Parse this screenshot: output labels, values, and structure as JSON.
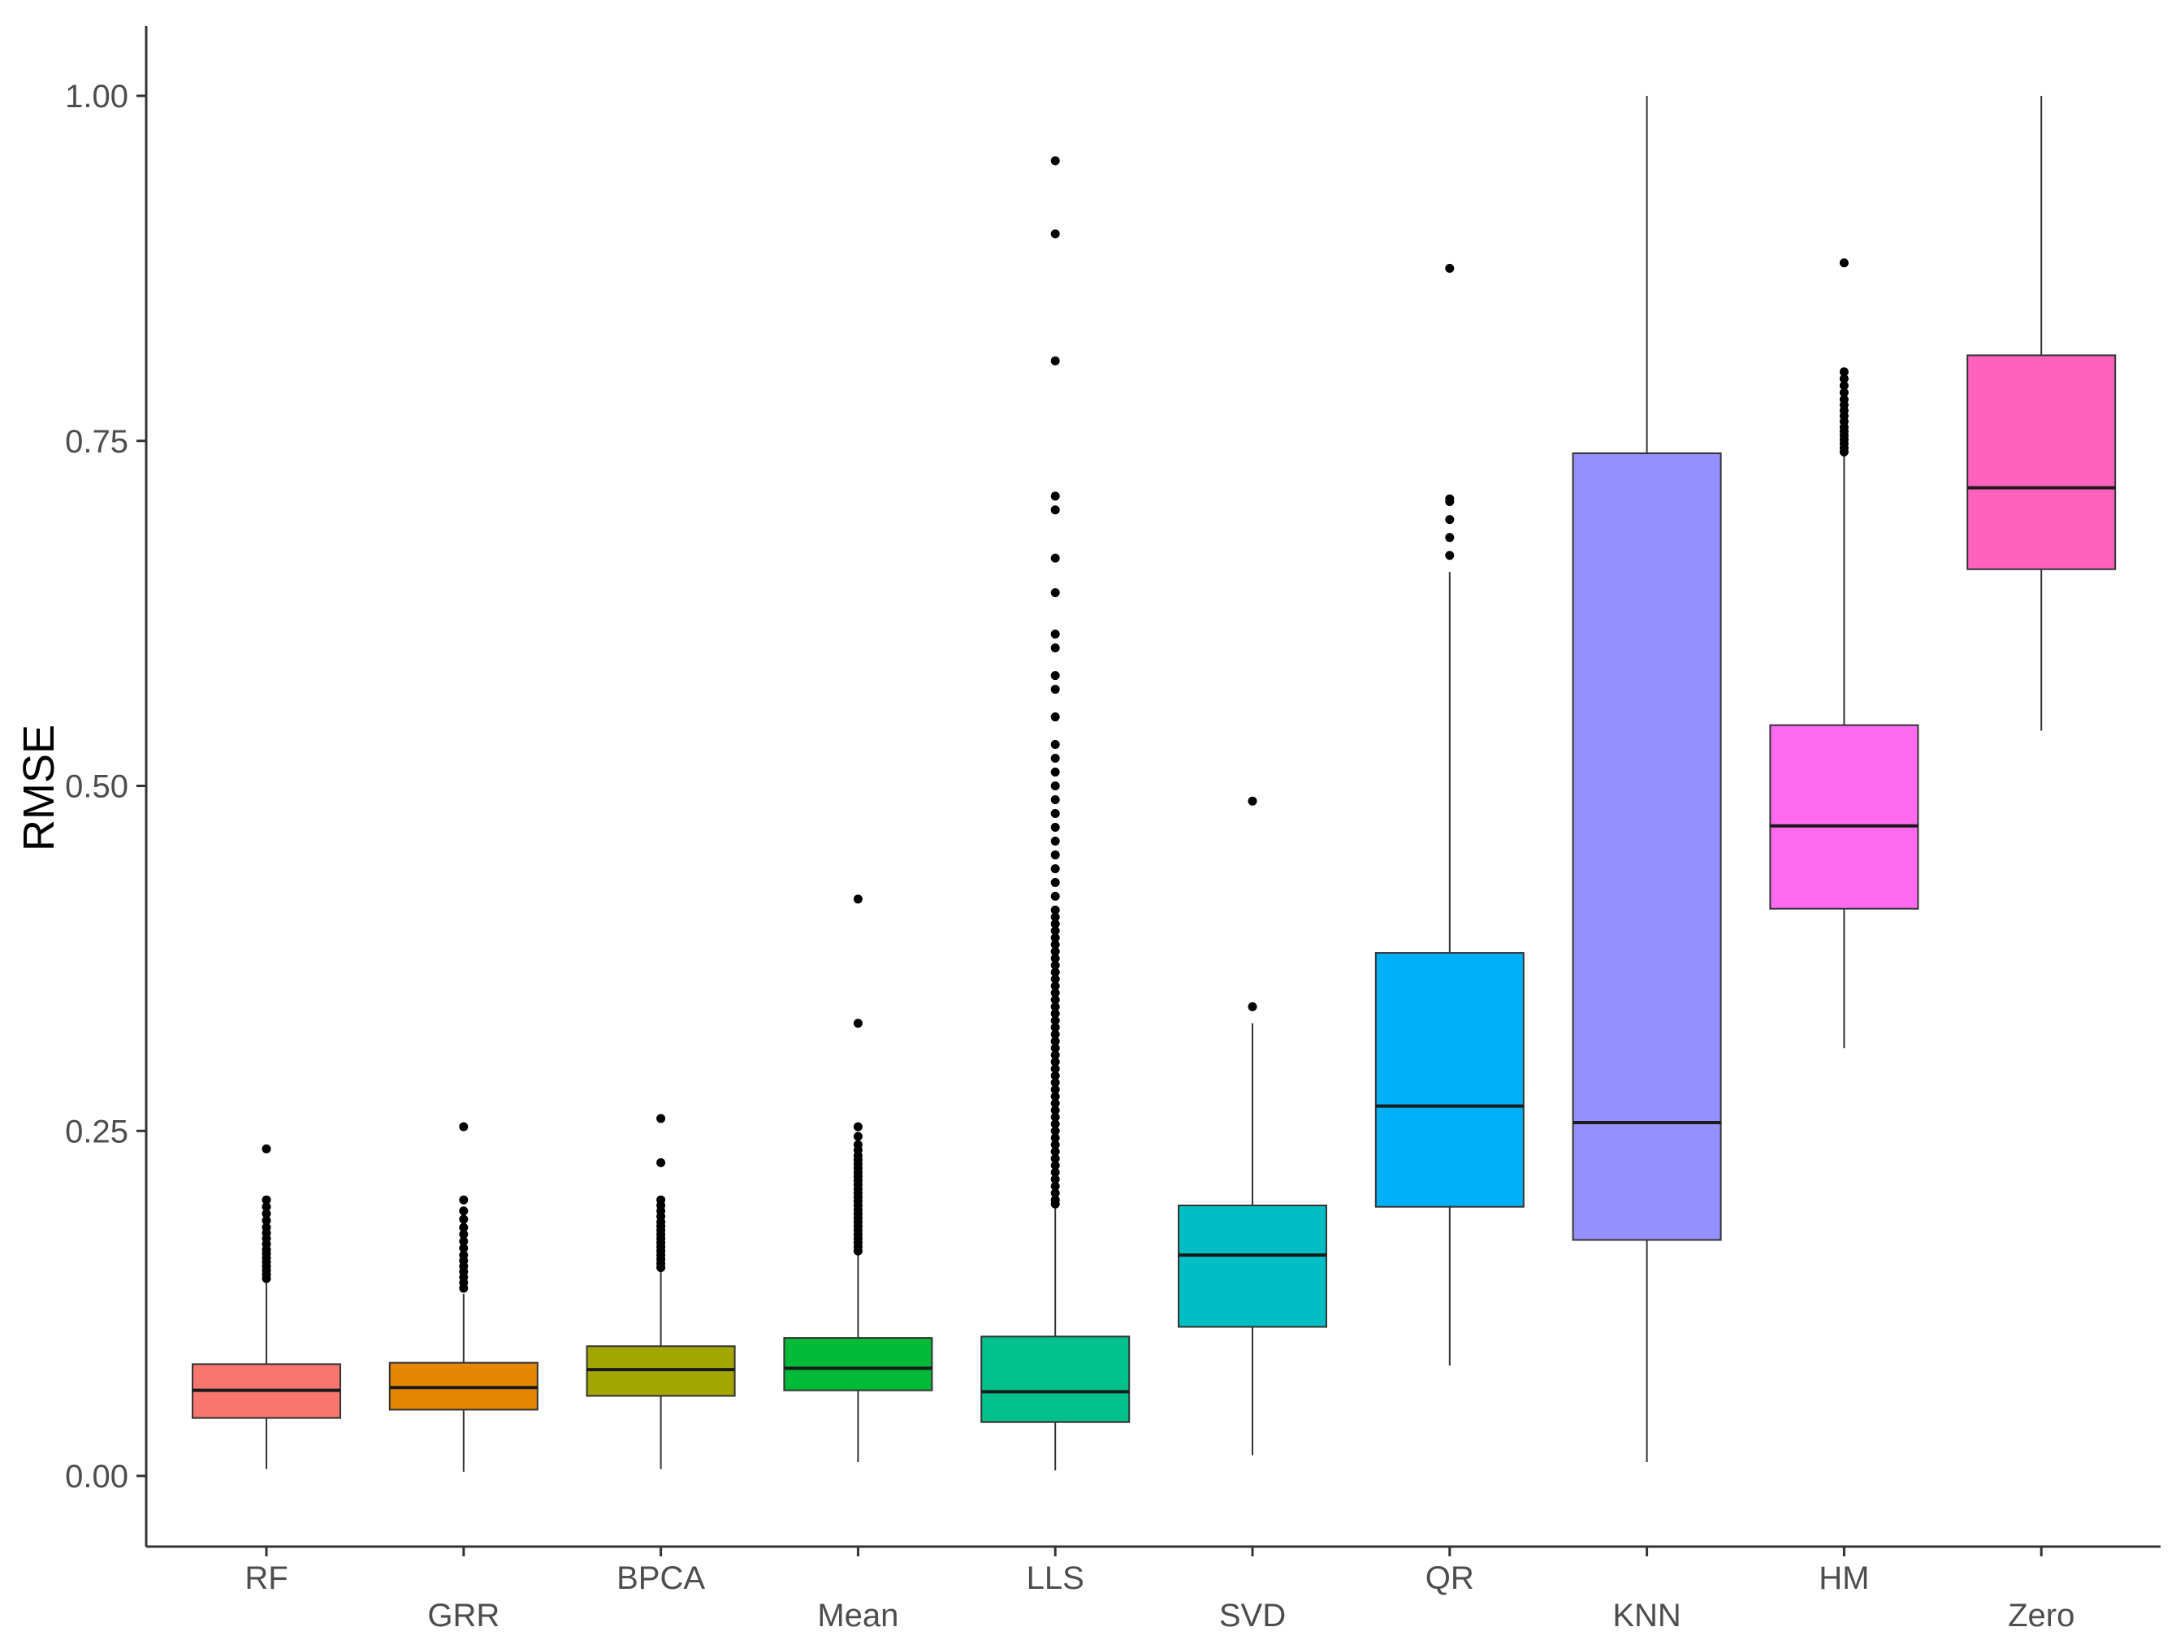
{
  "chart_data": {
    "type": "box",
    "title": "",
    "xlabel": "",
    "ylabel": "RMSE",
    "ylim": [
      -0.05,
      1.05
    ],
    "yticks": [
      0.0,
      0.25,
      0.5,
      0.75,
      1.0
    ],
    "ytick_labels": [
      "0.00",
      "0.25",
      "0.50",
      "0.75",
      "1.00"
    ],
    "grid": false,
    "legend": "none",
    "categories": [
      "RF",
      "GRR",
      "BPCA",
      "Mean",
      "LLS",
      "SVD",
      "QR",
      "KNN",
      "HM",
      "Zero"
    ],
    "series": [
      {
        "name": "RF",
        "color": "#F8766D",
        "whisker_low": 0.005,
        "q1": 0.042,
        "median": 0.062,
        "q3": 0.081,
        "whisker_high": 0.14,
        "outliers": [
          0.143,
          0.146,
          0.149,
          0.152,
          0.155,
          0.158,
          0.161,
          0.164,
          0.168,
          0.172,
          0.176,
          0.18,
          0.185,
          0.19,
          0.195,
          0.2,
          0.237
        ]
      },
      {
        "name": "GRR",
        "color": "#E58700",
        "whisker_low": 0.003,
        "q1": 0.048,
        "median": 0.064,
        "q3": 0.082,
        "whisker_high": 0.132,
        "outliers": [
          0.136,
          0.14,
          0.144,
          0.148,
          0.152,
          0.156,
          0.16,
          0.165,
          0.17,
          0.175,
          0.18,
          0.186,
          0.192,
          0.2,
          0.253
        ]
      },
      {
        "name": "BPCA",
        "color": "#A3A500",
        "whisker_low": 0.005,
        "q1": 0.058,
        "median": 0.077,
        "q3": 0.094,
        "whisker_high": 0.148,
        "outliers": [
          0.151,
          0.154,
          0.157,
          0.16,
          0.163,
          0.166,
          0.169,
          0.172,
          0.175,
          0.178,
          0.181,
          0.184,
          0.188,
          0.192,
          0.196,
          0.2,
          0.227,
          0.259
        ]
      },
      {
        "name": "Mean",
        "color": "#00BA38",
        "whisker_low": 0.01,
        "q1": 0.062,
        "median": 0.078,
        "q3": 0.1,
        "whisker_high": 0.16,
        "outliers": [
          0.163,
          0.166,
          0.169,
          0.172,
          0.175,
          0.178,
          0.181,
          0.184,
          0.187,
          0.19,
          0.193,
          0.196,
          0.199,
          0.202,
          0.205,
          0.208,
          0.211,
          0.214,
          0.217,
          0.22,
          0.223,
          0.226,
          0.229,
          0.232,
          0.236,
          0.24,
          0.246,
          0.253,
          0.328,
          0.418
        ]
      },
      {
        "name": "LLS",
        "color": "#00C08B",
        "whisker_low": 0.004,
        "q1": 0.039,
        "median": 0.061,
        "q3": 0.101,
        "whisker_high": 0.195,
        "outliers": [
          0.197,
          0.2,
          0.205,
          0.21,
          0.215,
          0.22,
          0.225,
          0.23,
          0.235,
          0.24,
          0.245,
          0.25,
          0.255,
          0.26,
          0.265,
          0.27,
          0.275,
          0.28,
          0.285,
          0.29,
          0.295,
          0.3,
          0.305,
          0.31,
          0.315,
          0.32,
          0.325,
          0.33,
          0.335,
          0.34,
          0.345,
          0.35,
          0.355,
          0.36,
          0.365,
          0.37,
          0.375,
          0.38,
          0.385,
          0.39,
          0.395,
          0.4,
          0.405,
          0.41,
          0.42,
          0.43,
          0.44,
          0.45,
          0.46,
          0.47,
          0.48,
          0.49,
          0.5,
          0.51,
          0.52,
          0.53,
          0.55,
          0.57,
          0.58,
          0.6,
          0.61,
          0.64,
          0.665,
          0.7,
          0.71,
          0.808,
          0.9,
          0.953
        ]
      },
      {
        "name": "SVD",
        "color": "#00BFC4",
        "whisker_low": 0.015,
        "q1": 0.108,
        "median": 0.16,
        "q3": 0.196,
        "whisker_high": 0.328,
        "outliers": [
          0.34,
          0.489
        ]
      },
      {
        "name": "QR",
        "color": "#00B0F6",
        "whisker_low": 0.08,
        "q1": 0.195,
        "median": 0.268,
        "q3": 0.379,
        "whisker_high": 0.655,
        "outliers": [
          0.667,
          0.68,
          0.693,
          0.706,
          0.708,
          0.875
        ]
      },
      {
        "name": "KNN",
        "color": "#9590FF",
        "whisker_low": 0.01,
        "q1": 0.171,
        "median": 0.256,
        "q3": 0.741,
        "whisker_high": 1.0,
        "outliers": []
      },
      {
        "name": "HM",
        "color": "#FF6AF1",
        "whisker_low": 0.31,
        "q1": 0.411,
        "median": 0.471,
        "q3": 0.544,
        "whisker_high": 0.74,
        "outliers": [
          0.742,
          0.745,
          0.748,
          0.751,
          0.754,
          0.757,
          0.76,
          0.764,
          0.768,
          0.772,
          0.776,
          0.78,
          0.785,
          0.79,
          0.795,
          0.8,
          0.879
        ]
      },
      {
        "name": "Zero",
        "color": "#FF62BC",
        "whisker_low": 0.54,
        "q1": 0.657,
        "median": 0.716,
        "q3": 0.812,
        "whisker_high": 1.0,
        "outliers": []
      }
    ]
  }
}
